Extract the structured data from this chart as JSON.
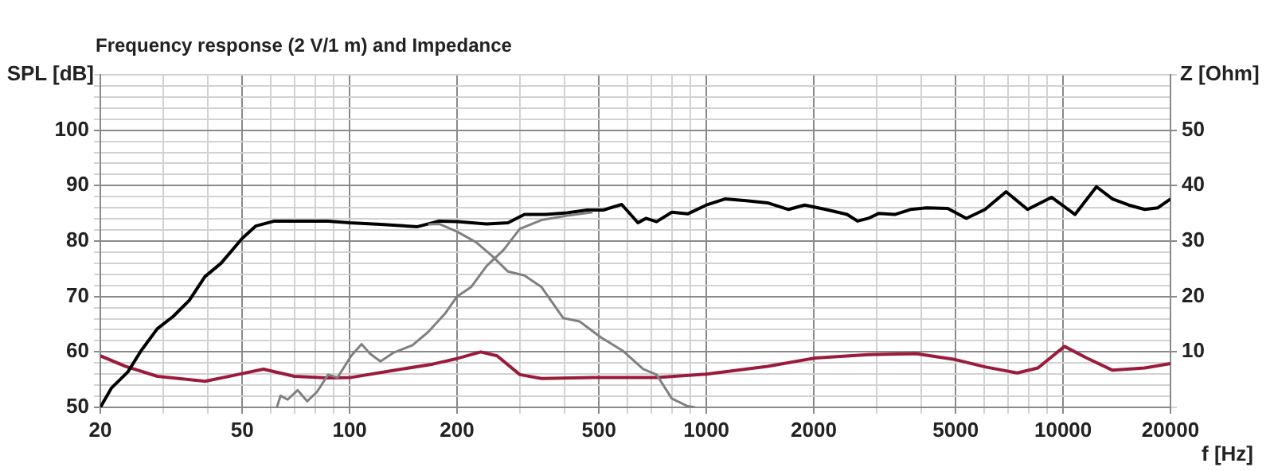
{
  "chart_data": {
    "type": "line",
    "subtitle": "Frequency response (2 V/1 m) and Impedance",
    "xlabel": "f [Hz]",
    "ylabel": "SPL [dB]",
    "y2label": "Z [Ohm]",
    "log": "x",
    "grid": true,
    "legend": false,
    "marker": "none",
    "line_style": "solid",
    "xlim": [
      20,
      20000
    ],
    "xticks": [
      20,
      {
        "value": 30,
        "label": null
      },
      {
        "value": 40,
        "label": null
      },
      50,
      {
        "value": 60,
        "label": null
      },
      {
        "value": 70,
        "label": null
      },
      {
        "value": 80,
        "label": null
      },
      {
        "value": 90,
        "label": null
      },
      100,
      200,
      {
        "value": 300,
        "label": null
      },
      {
        "value": 400,
        "label": null
      },
      500,
      {
        "value": 600,
        "label": null
      },
      {
        "value": 700,
        "label": null
      },
      {
        "value": 800,
        "label": null
      },
      {
        "value": 900,
        "label": null
      },
      1000,
      2000,
      {
        "value": 3000,
        "label": null
      },
      {
        "value": 4000,
        "label": null
      },
      5000,
      {
        "value": 6000,
        "label": null
      },
      {
        "value": 7000,
        "label": null
      },
      {
        "value": 8000,
        "label": null
      },
      {
        "value": 9000,
        "label": null
      },
      10000,
      20000
    ],
    "ylim": [
      50,
      110
    ],
    "yticks": [
      50,
      {
        "value": 52,
        "label": null
      },
      {
        "value": 54,
        "label": null
      },
      {
        "value": 56,
        "label": null
      },
      {
        "value": 58,
        "label": null
      },
      60,
      {
        "value": 62,
        "label": null
      },
      {
        "value": 64,
        "label": null
      },
      {
        "value": 66,
        "label": null
      },
      {
        "value": 68,
        "label": null
      },
      70,
      {
        "value": 72,
        "label": null
      },
      {
        "value": 74,
        "label": null
      },
      {
        "value": 76,
        "label": null
      },
      {
        "value": 78,
        "label": null
      },
      80,
      {
        "value": 82,
        "label": null
      },
      {
        "value": 84,
        "label": null
      },
      {
        "value": 86,
        "label": null
      },
      {
        "value": 88,
        "label": null
      },
      90,
      {
        "value": 92,
        "label": null
      },
      {
        "value": 94,
        "label": null
      },
      {
        "value": 96,
        "label": null
      },
      {
        "value": 98,
        "label": null
      },
      100,
      {
        "value": 102,
        "label": null
      },
      {
        "value": 104,
        "label": null
      },
      {
        "value": 106,
        "label": null
      },
      {
        "value": 108,
        "label": null
      },
      {
        "value": 110,
        "label": null
      }
    ],
    "y2lim": [
      0,
      60
    ],
    "y2ticks": [
      {
        "value": 0,
        "label": null
      },
      10,
      20,
      30,
      40,
      50,
      {
        "value": 60,
        "label": null
      }
    ],
    "series": [
      {
        "color": "#808080",
        "x": [
          62.5,
          64,
          67,
          71.5,
          76,
          81,
          87,
          92.5,
          101,
          108,
          114,
          122,
          133,
          150,
          166,
          185,
          200,
          219,
          242,
          270,
          300,
          345,
          407,
          480
        ],
        "values": [
          50,
          52.1,
          51.4,
          53.1,
          51.1,
          52.8,
          55.9,
          55.4,
          59.3,
          61.4,
          59.7,
          58.3,
          59.9,
          61.2,
          63.6,
          66.9,
          70,
          71.7,
          75.5,
          78.4,
          82.2,
          83.8,
          84.6,
          85.2
        ]
      },
      {
        "color": "#808080",
        "x": [
          166,
          178,
          200,
          226,
          250,
          278,
          309,
          345,
          397,
          441,
          507,
          583,
          665,
          725,
          800,
          886,
          930
        ],
        "values": [
          83,
          83.1,
          81.7,
          79.8,
          77.4,
          74.5,
          73.8,
          71.7,
          66.1,
          65.5,
          62.6,
          60.2,
          56.9,
          55.9,
          51.6,
          50.2,
          50
        ]
      },
      {
        "color": "#000000",
        "x": [
          20,
          21.5,
          23.9,
          26,
          28.9,
          32,
          35.5,
          39.3,
          43.6,
          50,
          54.5,
          61.5,
          87,
          100,
          122,
          155,
          178,
          200,
          242,
          278,
          309,
          355,
          407,
          463,
          514,
          579,
          643,
          677,
          725,
          800,
          886,
          1000,
          1127,
          1293,
          1483,
          1700,
          1885,
          2160,
          2480,
          2653,
          2843,
          3046,
          3374,
          3735,
          4140,
          4750,
          5355,
          6040,
          6920,
          7950,
          9280,
          10800,
          12400,
          13760,
          15270,
          16930,
          18440,
          20000
        ],
        "values": [
          50,
          53.5,
          56.4,
          60.2,
          64.2,
          66.4,
          69.3,
          73.6,
          76,
          80.5,
          82.7,
          83.6,
          83.6,
          83.3,
          83,
          82.6,
          83.6,
          83.5,
          83.1,
          83.3,
          84.8,
          84.8,
          85.1,
          85.6,
          85.6,
          86.6,
          83.3,
          84.1,
          83.5,
          85.2,
          84.9,
          86.5,
          87.6,
          87.3,
          86.9,
          85.7,
          86.5,
          85.7,
          84.8,
          83.6,
          84.1,
          85,
          84.8,
          85.7,
          86,
          85.9,
          84.1,
          85.7,
          88.9,
          85.7,
          87.9,
          84.8,
          89.8,
          87.6,
          86.5,
          85.7,
          86,
          87.6
        ]
      },
      {
        "color": "#9b1b3a",
        "axis": "y2",
        "x": [
          20,
          23.5,
          28.9,
          39.3,
          48.4,
          57.3,
          70,
          87,
          101,
          131,
          171,
          200,
          233,
          259,
          300,
          345,
          480,
          725,
          1000,
          1483,
          2020,
          2843,
          3870,
          5000,
          6040,
          7440,
          8500,
          10090,
          11560,
          13760,
          16930,
          20000
        ],
        "values": [
          9.3,
          7.4,
          5.6,
          4.7,
          5.9,
          6.9,
          5.6,
          5.3,
          5.4,
          6.6,
          7.8,
          8.8,
          10,
          9.3,
          5.9,
          5.2,
          5.4,
          5.4,
          6,
          7.4,
          8.9,
          9.5,
          9.7,
          8.6,
          7.3,
          6.2,
          7.1,
          11,
          9,
          6.7,
          7.1,
          7.9
        ]
      }
    ]
  }
}
